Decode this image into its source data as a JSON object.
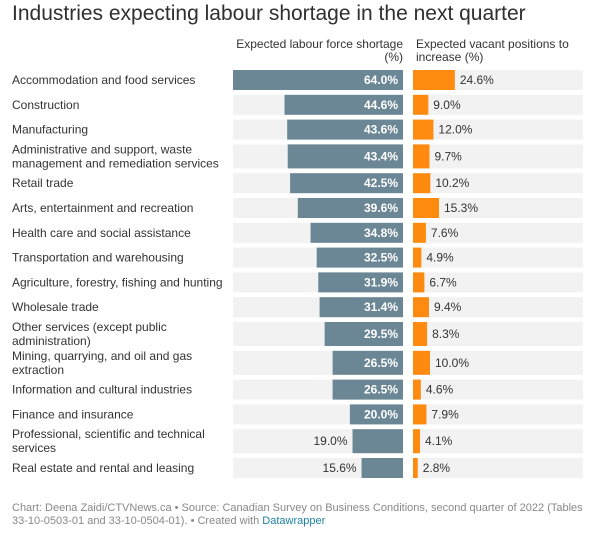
{
  "title": "Industries expecting labour shortage in the next quarter",
  "columns": {
    "left": "Expected labour force shortage (%)",
    "right": "Expected vacant positions to increase (%)"
  },
  "colors": {
    "shortage": "#6b8795",
    "vacant": "#ff8a10",
    "track": "#f2f2f2"
  },
  "chart_data": {
    "type": "bar",
    "title": "Industries expecting labour shortage in the next quarter",
    "categories": [
      "Accommodation and food services",
      "Construction",
      "Manufacturing",
      "Administrative and support, waste management and remediation services",
      "Retail trade",
      "Arts, entertainment and recreation",
      "Health care and social assistance",
      "Transportation and warehousing",
      "Agriculture, forestry, fishing and hunting",
      "Wholesale trade",
      "Other services (except public administration)",
      "Mining, quarrying, and oil and gas extraction",
      "Information and cultural industries",
      "Finance and insurance",
      "Professional, scientific and technical services",
      "Real estate and rental and leasing"
    ],
    "series": [
      {
        "name": "Expected labour force shortage (%)",
        "values": [
          64.0,
          44.6,
          43.6,
          43.4,
          42.5,
          39.6,
          34.8,
          32.5,
          31.9,
          31.4,
          29.5,
          26.5,
          26.5,
          20.0,
          19.0,
          15.6
        ],
        "labels": [
          "64.0%",
          "44.6%",
          "43.6%",
          "43.4%",
          "42.5%",
          "39.6%",
          "34.8%",
          "32.5%",
          "31.9%",
          "31.4%",
          "29.5%",
          "26.5%",
          "26.5%",
          "20.0%",
          "19.0%",
          "15.6%"
        ]
      },
      {
        "name": "Expected vacant positions to increase (%)",
        "values": [
          24.6,
          9.0,
          12.0,
          9.7,
          10.2,
          15.3,
          7.6,
          4.9,
          6.7,
          9.4,
          8.3,
          10.0,
          4.6,
          7.9,
          4.1,
          2.8
        ],
        "labels": [
          "24.6%",
          "9.0%",
          "12.0%",
          "9.7%",
          "10.2%",
          "15.3%",
          "7.6%",
          "4.9%",
          "6.7%",
          "9.4%",
          "8.3%",
          "10.0%",
          "4.6%",
          "7.9%",
          "4.1%",
          "2.8%"
        ]
      }
    ],
    "xlim_left": [
      0,
      64
    ],
    "xlim_right": [
      0,
      100
    ]
  },
  "footer": {
    "text": "Chart: Deena Zaidi/CTVNews.ca • Source: Canadian Survey on Business Conditions, second quarter of 2022 (Tables 33-10-0503-01 and 33-10-0504-01). • Created with ",
    "link": "Datawrapper"
  }
}
